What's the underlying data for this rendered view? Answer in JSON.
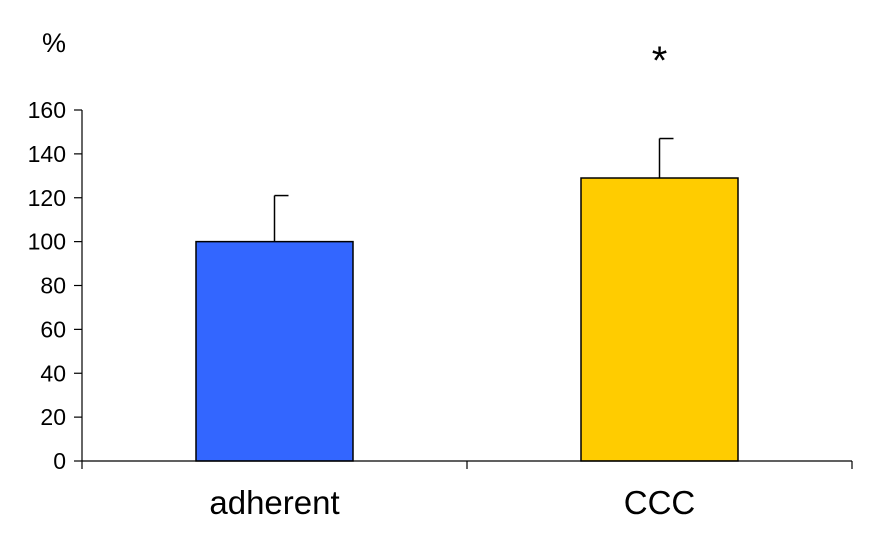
{
  "chart_data": {
    "type": "bar",
    "title": "",
    "ylabel": "%",
    "xlabel": "",
    "categories": [
      "adherent",
      "CCC"
    ],
    "values": [
      100,
      129
    ],
    "error_plus": [
      21,
      18
    ],
    "annotations": [
      "",
      "*"
    ],
    "colors": [
      "#3366ff",
      "#ffcc00"
    ],
    "ylim": [
      0,
      160
    ],
    "yticks": [
      "0",
      "20",
      "40",
      "60",
      "80",
      "100",
      "120",
      "140",
      "160"
    ],
    "grid": false
  }
}
